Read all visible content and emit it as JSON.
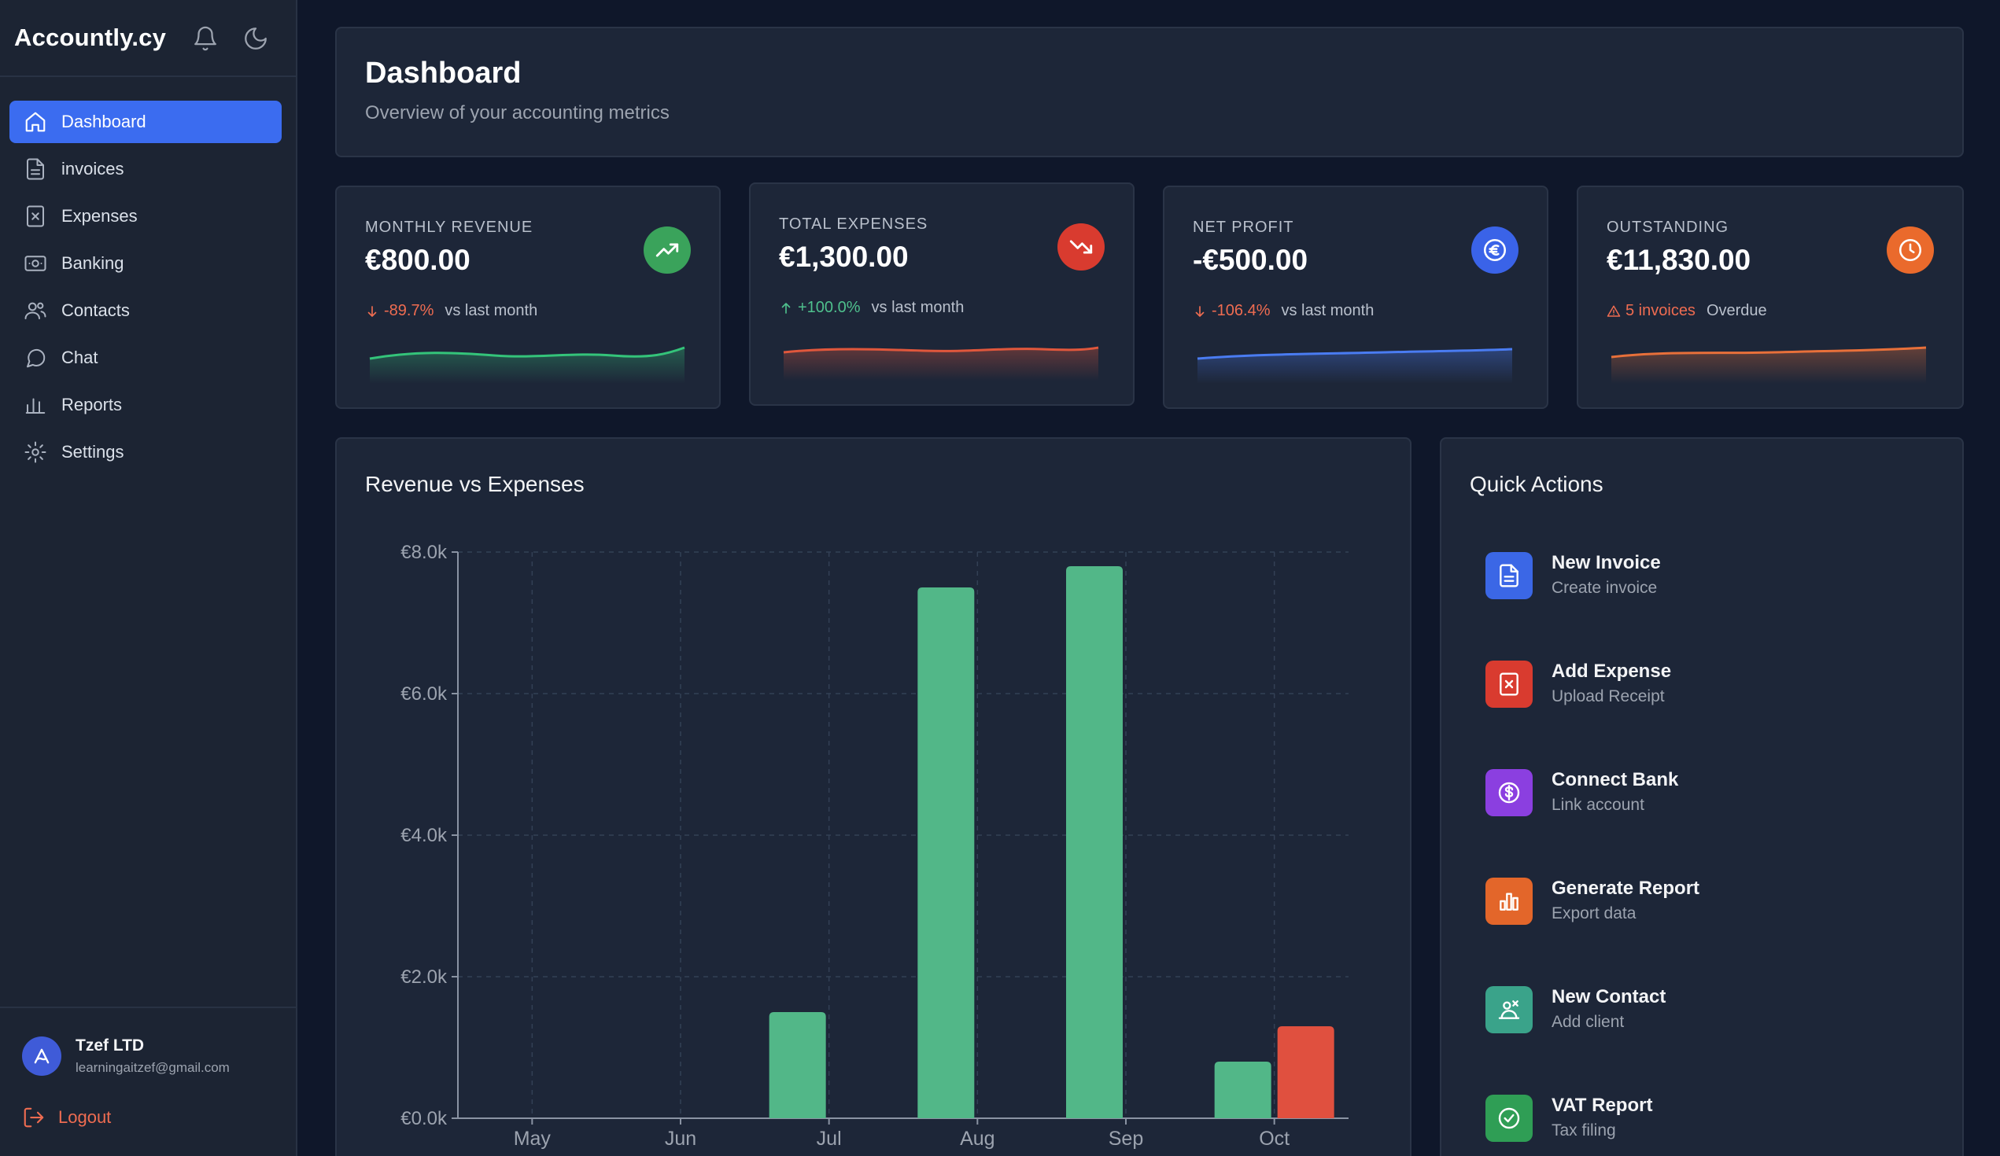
{
  "app": {
    "brand": "Accountly.cy"
  },
  "sidebar": {
    "items": [
      {
        "label": "Dashboard",
        "icon": "home-icon",
        "active": true
      },
      {
        "label": "invoices",
        "icon": "document-icon"
      },
      {
        "label": "Expenses",
        "icon": "receipt-icon"
      },
      {
        "label": "Banking",
        "icon": "banknote-icon"
      },
      {
        "label": "Contacts",
        "icon": "users-icon"
      },
      {
        "label": "Chat",
        "icon": "chat-icon"
      },
      {
        "label": "Reports",
        "icon": "bar-chart-icon"
      },
      {
        "label": "Settings",
        "icon": "gear-icon"
      }
    ],
    "user": {
      "name": "Tzef LTD",
      "email": "learningaitzef@gmail.com"
    },
    "logout_label": "Logout"
  },
  "header": {
    "title": "Dashboard",
    "subtitle": "Overview of your accounting metrics"
  },
  "metrics": [
    {
      "label": "MONTHLY REVENUE",
      "value": "€800.00",
      "change": "-89.7%",
      "change_dir": "down",
      "compare": "vs last month",
      "badge_color": "#3aa35b",
      "change_color": "#ef6c51",
      "icon": "trend-up-icon",
      "spark_color": "#34c47a"
    },
    {
      "label": "TOTAL EXPENSES",
      "value": "€1,300.00",
      "change": "+100.0%",
      "change_dir": "up",
      "compare": "vs last month",
      "badge_color": "#d93b2f",
      "change_color": "#4fc08d",
      "icon": "trend-down-icon",
      "spark_color": "#e0573c"
    },
    {
      "label": "NET PROFIT",
      "value": "-€500.00",
      "change": "-106.4%",
      "change_dir": "down",
      "compare": "vs last month",
      "badge_color": "#3a63e8",
      "change_color": "#ef6c51",
      "icon": "euro-icon",
      "spark_color": "#4a7cf2"
    },
    {
      "label": "OUTSTANDING",
      "value": "€11,830.00",
      "change": "5 invoices",
      "change_dir": "warn",
      "compare": "Overdue",
      "badge_color": "#ea6a2c",
      "change_color": "#ef6c51",
      "icon": "clock-icon",
      "spark_color": "#e8703a"
    }
  ],
  "quick_actions": {
    "title": "Quick Actions",
    "items": [
      {
        "name": "New Invoice",
        "desc": "Create invoice",
        "color": "#3b67e6",
        "icon": "document-icon"
      },
      {
        "name": "Add Expense",
        "desc": "Upload Receipt",
        "color": "#d93b2f",
        "icon": "receipt-icon"
      },
      {
        "name": "Connect Bank",
        "desc": "Link account",
        "color": "#8b3fe0",
        "icon": "dollar-circle-icon"
      },
      {
        "name": "Generate Report",
        "desc": "Export data",
        "color": "#e3662a",
        "icon": "bar-chart-icon"
      },
      {
        "name": "New Contact",
        "desc": "Add client",
        "color": "#3aa38a",
        "icon": "handshake-icon"
      },
      {
        "name": "VAT Report",
        "desc": "Tax filing",
        "color": "#2f9e55",
        "icon": "check-circle-icon"
      }
    ]
  },
  "chart_data": {
    "type": "bar",
    "title": "Revenue vs Expenses",
    "categories": [
      "May",
      "Jun",
      "Jul",
      "Aug",
      "Sep",
      "Oct"
    ],
    "series": [
      {
        "values": [
          0,
          0,
          1500,
          7500,
          7800,
          800
        ],
        "color": "#52b788"
      },
      {
        "values": [
          0,
          0,
          0,
          0,
          0,
          1300
        ],
        "color": "#e0503f"
      }
    ],
    "ylim": [
      0,
      8000
    ],
    "yticks": [
      "€0.0k",
      "€2.0k",
      "€4.0k",
      "€6.0k",
      "€8.0k"
    ],
    "grid": true
  }
}
